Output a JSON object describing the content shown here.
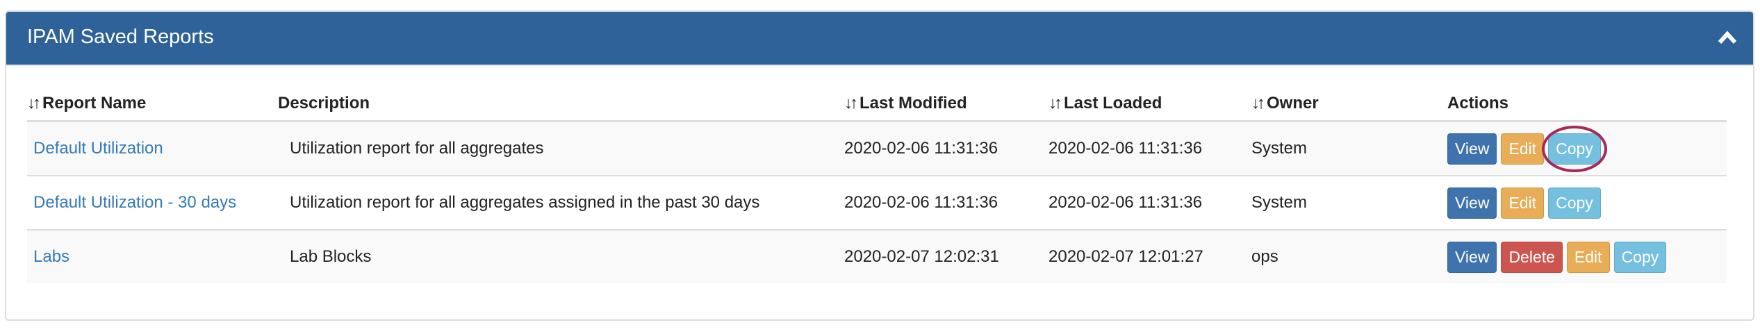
{
  "panel": {
    "title": "IPAM Saved Reports",
    "collapse_icon": "chevron-up-icon"
  },
  "columns": {
    "report_name": "Report Name",
    "description": "Description",
    "last_modified": "Last Modified",
    "last_loaded": "Last Loaded",
    "owner": "Owner",
    "actions": "Actions",
    "sort_glyph": "↓↑"
  },
  "rows": [
    {
      "name": "Default Utilization",
      "description": "Utilization report for all aggregates",
      "last_modified": "2020-02-06 11:31:36",
      "last_loaded": "2020-02-06 11:31:36",
      "owner": "System",
      "view": "View",
      "edit": "Edit",
      "copy": "Copy"
    },
    {
      "name": "Default Utilization - 30 days",
      "description": "Utilization report for all aggregates assigned in the past 30 days",
      "last_modified": "2020-02-06 11:31:36",
      "last_loaded": "2020-02-06 11:31:36",
      "owner": "System",
      "view": "View",
      "edit": "Edit",
      "copy": "Copy"
    },
    {
      "name": "Labs",
      "description": "Lab Blocks",
      "last_modified": "2020-02-07 12:02:31",
      "last_loaded": "2020-02-07 12:01:27",
      "owner": "ops",
      "view": "View",
      "delete": "Delete",
      "edit": "Edit",
      "copy": "Copy"
    }
  ],
  "colors": {
    "header": "#2f6299",
    "link": "#337ab7",
    "view": "#3f73ad",
    "edit": "#e8ad56",
    "copy": "#75bfdf",
    "delete": "#cc5550",
    "highlight_circle": "#a52a5a"
  }
}
